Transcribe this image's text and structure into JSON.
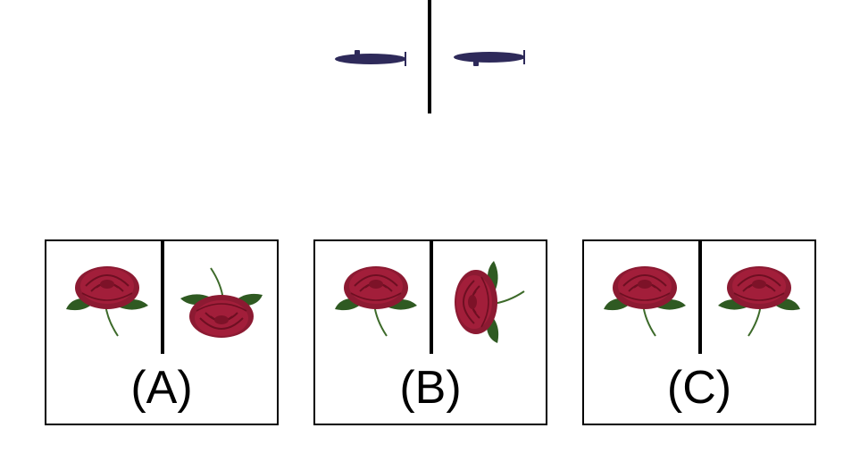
{
  "top_panel": {
    "left_item": "submarine-icon",
    "right_item": "submarine-icon",
    "color": "#2e2a5a"
  },
  "options": [
    {
      "label": "(A)"
    },
    {
      "label": "(B)"
    },
    {
      "label": "(C)"
    }
  ],
  "rose_colors": {
    "petal": "#a21e3a",
    "petal_dark": "#7d1228",
    "leaf": "#2f5a22",
    "stem": "#3d6a2a"
  }
}
